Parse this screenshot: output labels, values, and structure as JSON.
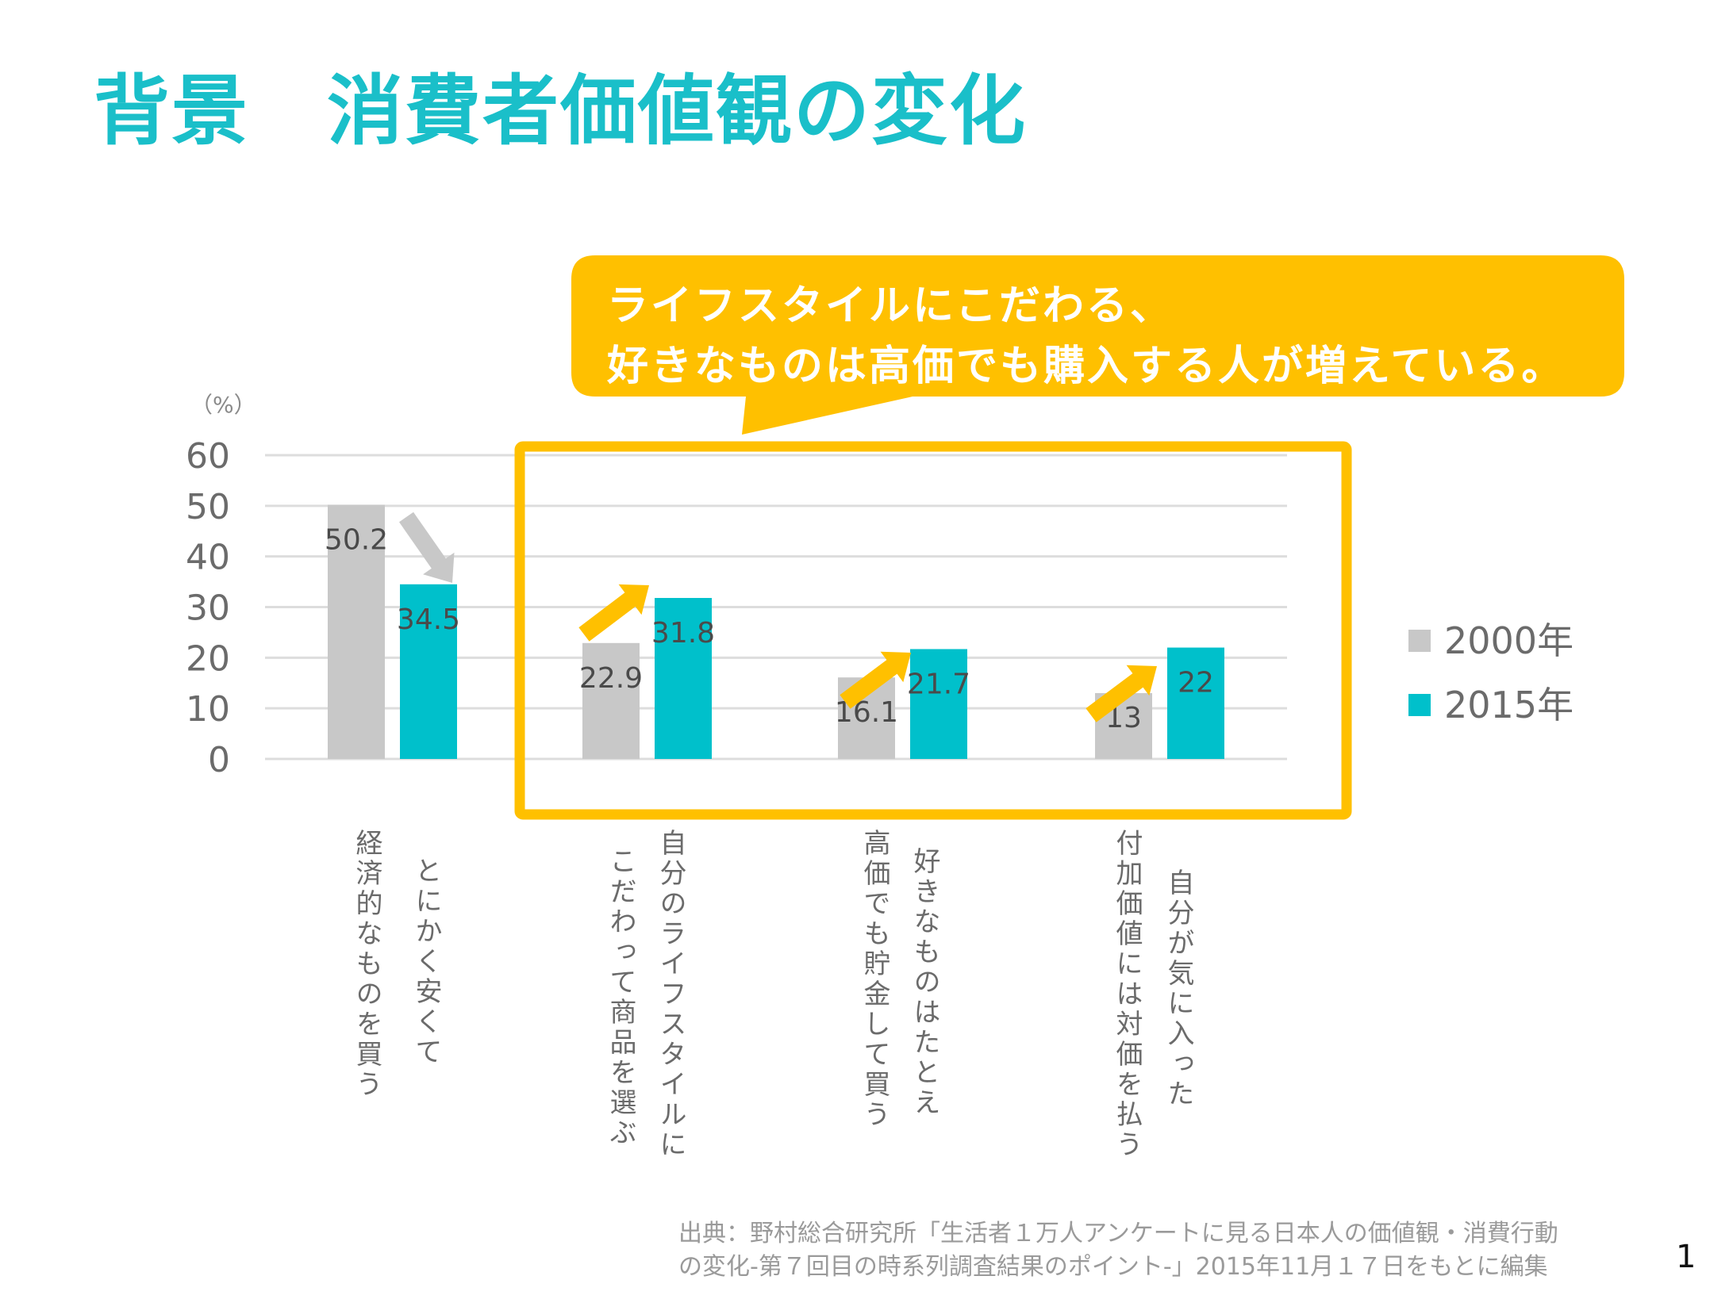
{
  "slide": {
    "title": "背景　消費者価値観の変化",
    "page_number": "1"
  },
  "callout": {
    "line1": "ライフスタイルにこだわる、",
    "line2": "好きなものは高価でも購入する人が増えている。"
  },
  "footer": {
    "source_line1": "出典：野村総合研究所「生活者１万人アンケートに見る日本人の価値観・消費行動",
    "source_line2": "の変化-第７回目の時系列調査結果のポイント-」2015年11月１７日をもとに編集"
  },
  "colors": {
    "title": "#1ABFC9",
    "series_2000": "#C8C8C8",
    "series_2015": "#00C0CB",
    "highlight": "#FFC000",
    "decline_arrow": "#C8C8C8",
    "grid": "#DDDDDD"
  },
  "chart_data": {
    "type": "bar",
    "title": "",
    "ylabel": "（%）",
    "xlabel": "",
    "ylim": [
      0,
      60
    ],
    "yticks": [
      0,
      10,
      20,
      30,
      40,
      50,
      60
    ],
    "grid": true,
    "legend_position": "right",
    "categories": [
      {
        "line1": "とにかく安くて",
        "line2": "経済的なものを買う"
      },
      {
        "line1": "自分のライフスタイルに",
        "line2": "こだわって商品を選ぶ"
      },
      {
        "line1": "好きなものはたとえ",
        "line2": "高価でも貯金して買う"
      },
      {
        "line1": "自分が気に入った",
        "line2": "付加価値には対価を払う"
      }
    ],
    "series": [
      {
        "name": "2000年",
        "values": [
          50.2,
          22.9,
          16.1,
          13
        ],
        "labels": [
          "50.2",
          "22.9",
          "16.1",
          "13"
        ]
      },
      {
        "name": "2015年",
        "values": [
          34.5,
          31.8,
          21.7,
          22
        ],
        "labels": [
          "34.5",
          "31.8",
          "21.7",
          "22"
        ]
      }
    ],
    "annotations": {
      "trend": [
        "down",
        "up",
        "up",
        "up"
      ],
      "highlight_box_categories": [
        1,
        2,
        3
      ]
    }
  }
}
